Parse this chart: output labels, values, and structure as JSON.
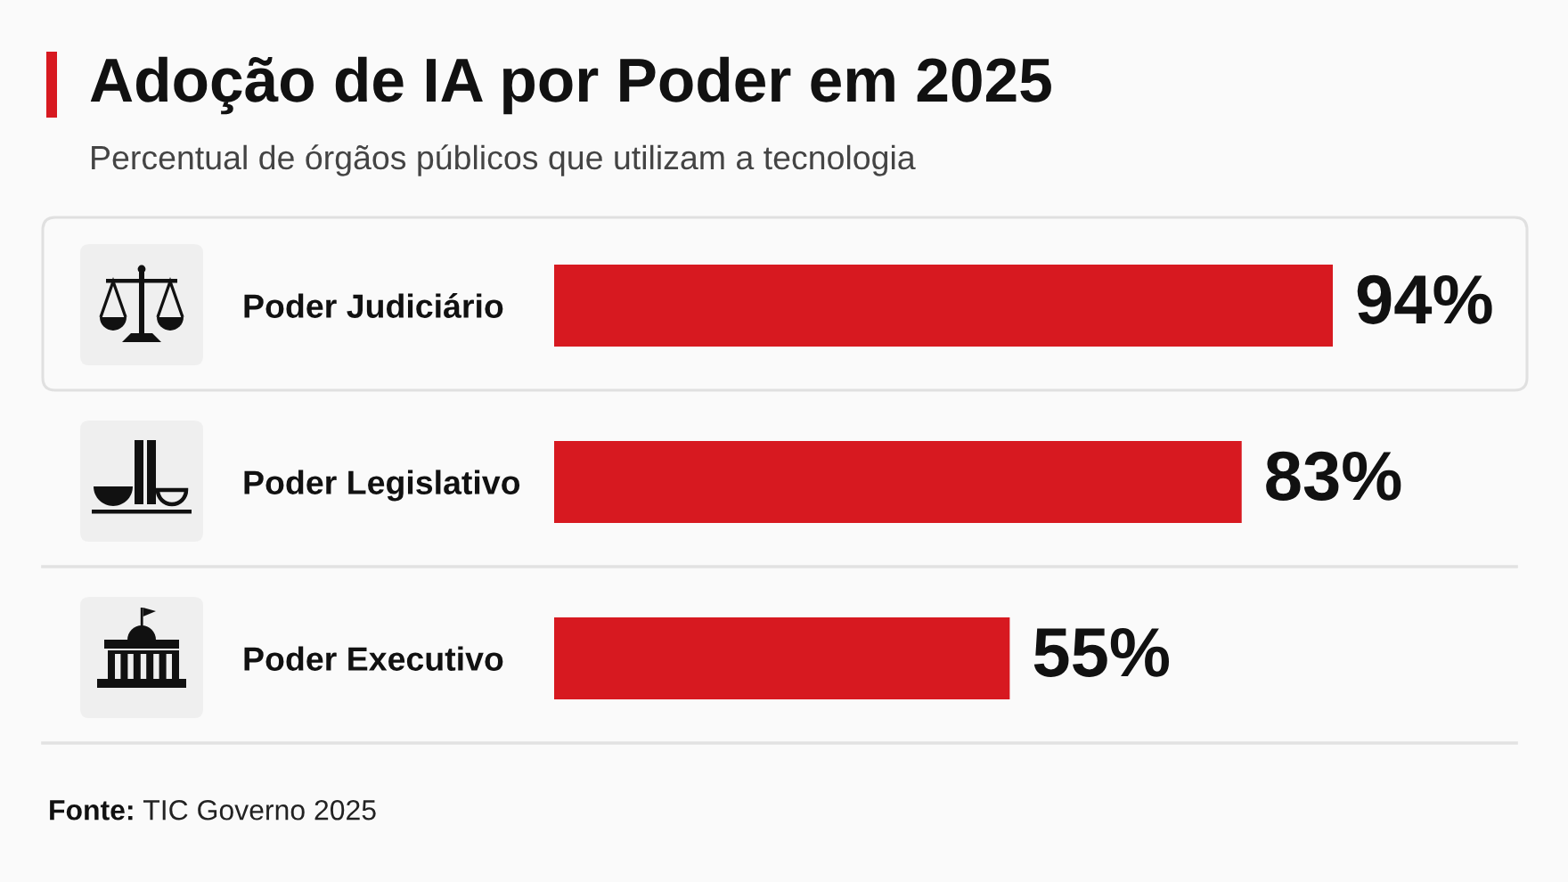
{
  "chart_data": {
    "type": "bar",
    "orientation": "horizontal",
    "title": "Adoção de IA por Poder em 2025",
    "subtitle": "Percentual de órgãos públicos que utilizam a tecnologia",
    "categories": [
      "Poder Judiciário",
      "Poder Legislativo",
      "Poder Executivo"
    ],
    "values": [
      94,
      83,
      55
    ],
    "color": "#d71920",
    "value_labels": [
      "94%",
      "83%",
      "55%"
    ],
    "tick_labels": "y",
    "annotations": [
      "Fonte: TIC Governo 2025"
    ]
  }
}
